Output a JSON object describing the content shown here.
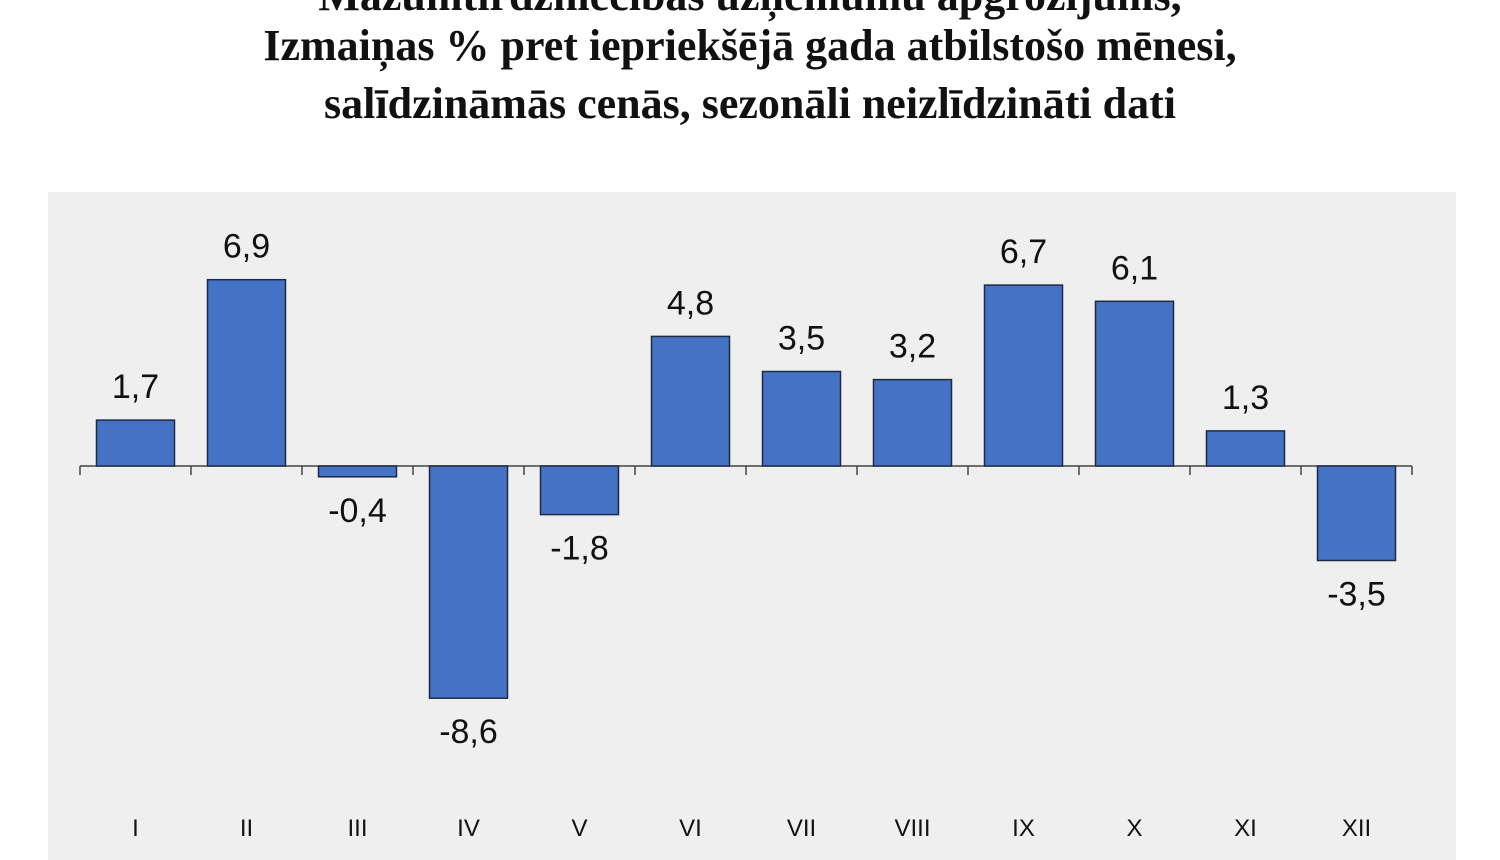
{
  "title_partial": "Mazumtirdzniecības uzņēmumu apgrozījums,",
  "title_line1": "Izmaiņas % pret iepriekšējā gada atbilstošo mēnesi,",
  "title_line2": "salīdzināmās cenās, sezonāli neizlīdzināti dati",
  "chart_data": {
    "type": "bar",
    "categories": [
      "I",
      "II",
      "III",
      "IV",
      "V",
      "VI",
      "VII",
      "VIII",
      "IX",
      "X",
      "XI",
      "XII"
    ],
    "values": [
      1.7,
      6.9,
      -0.4,
      -8.6,
      -1.8,
      4.8,
      3.5,
      3.2,
      6.7,
      6.1,
      1.3,
      -3.5
    ],
    "value_labels": [
      "1,7",
      "6,9",
      "-0,4",
      "-8,6",
      "-1,8",
      "4,8",
      "3,5",
      "3,2",
      "6,7",
      "6,1",
      "1,3",
      "-3,5"
    ],
    "bar_color": "#4472c4",
    "grid": false,
    "legend": "none"
  }
}
